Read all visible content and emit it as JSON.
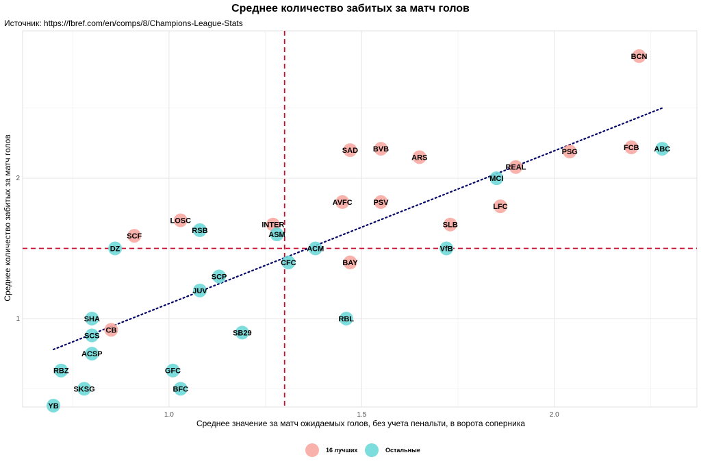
{
  "chart_data": {
    "type": "scatter",
    "title": "Среднее количество забитых за матч голов",
    "caption": "Источник: https://fbref.com/en/comps/8/Champions-League-Stats",
    "xlabel": "Среднее значение за матч ожидаемых голов, без учета пенальти, в ворота соперника",
    "ylabel": "Среднее количество забитых за матч голов",
    "xlim": [
      0.62,
      2.37
    ],
    "ylim": [
      0.37,
      3.05
    ],
    "x_ticks": [
      {
        "value": 1.0,
        "label": "1.0"
      },
      {
        "value": 1.5,
        "label": "1.5"
      },
      {
        "value": 2.0,
        "label": "2.0"
      }
    ],
    "y_ticks": [
      {
        "value": 1,
        "label": "1"
      },
      {
        "value": 2,
        "label": "2"
      }
    ],
    "grid": true,
    "vline_x": 1.3,
    "hline_y": 1.5,
    "trend_line": {
      "x": [
        0.7,
        2.28
      ],
      "y": [
        0.78,
        2.5
      ]
    },
    "legend": [
      {
        "name": "16 лучших",
        "color": "#F8A8A2"
      },
      {
        "name": "Остальные",
        "color": "#6FD8D8"
      }
    ],
    "legend_position": "bottom",
    "points": [
      {
        "label": "BCN",
        "x": 2.22,
        "y": 2.87,
        "group": 0
      },
      {
        "label": "FCB",
        "x": 2.2,
        "y": 2.22,
        "group": 0
      },
      {
        "label": "ABC",
        "x": 2.28,
        "y": 2.21,
        "group": 1
      },
      {
        "label": "PSG",
        "x": 2.04,
        "y": 2.19,
        "group": 0
      },
      {
        "label": "REAL",
        "x": 1.9,
        "y": 2.08,
        "group": 0
      },
      {
        "label": "MCI",
        "x": 1.85,
        "y": 2.0,
        "group": 1
      },
      {
        "label": "LFC",
        "x": 1.86,
        "y": 1.8,
        "group": 0
      },
      {
        "label": "SLB",
        "x": 1.73,
        "y": 1.67,
        "group": 0
      },
      {
        "label": "VfB",
        "x": 1.72,
        "y": 1.5,
        "group": 1
      },
      {
        "label": "ARS",
        "x": 1.65,
        "y": 2.15,
        "group": 0
      },
      {
        "label": "BVB",
        "x": 1.55,
        "y": 2.21,
        "group": 0
      },
      {
        "label": "SAD",
        "x": 1.47,
        "y": 2.2,
        "group": 0
      },
      {
        "label": "PSV",
        "x": 1.55,
        "y": 1.83,
        "group": 0
      },
      {
        "label": "AVFC",
        "x": 1.45,
        "y": 1.83,
        "group": 0
      },
      {
        "label": "BAY",
        "x": 1.47,
        "y": 1.4,
        "group": 0
      },
      {
        "label": "RBL",
        "x": 1.46,
        "y": 1.0,
        "group": 1
      },
      {
        "label": "ACM",
        "x": 1.38,
        "y": 1.5,
        "group": 1
      },
      {
        "label": "CFC",
        "x": 1.31,
        "y": 1.4,
        "group": 1
      },
      {
        "label": "INTER",
        "x": 1.27,
        "y": 1.67,
        "group": 0
      },
      {
        "label": "ASM",
        "x": 1.28,
        "y": 1.6,
        "group": 1
      },
      {
        "label": "SB29",
        "x": 1.19,
        "y": 0.9,
        "group": 1
      },
      {
        "label": "SCP",
        "x": 1.13,
        "y": 1.3,
        "group": 1
      },
      {
        "label": "JUV",
        "x": 1.08,
        "y": 1.2,
        "group": 1
      },
      {
        "label": "LOSC",
        "x": 1.03,
        "y": 1.7,
        "group": 0
      },
      {
        "label": "RSB",
        "x": 1.08,
        "y": 1.63,
        "group": 1
      },
      {
        "label": "GFC",
        "x": 1.01,
        "y": 0.63,
        "group": 1
      },
      {
        "label": "BFC",
        "x": 1.03,
        "y": 0.5,
        "group": 1
      },
      {
        "label": "SCF",
        "x": 0.91,
        "y": 1.59,
        "group": 0
      },
      {
        "label": "DZ",
        "x": 0.86,
        "y": 1.5,
        "group": 1
      },
      {
        "label": "CB",
        "x": 0.85,
        "y": 0.92,
        "group": 0
      },
      {
        "label": "SHA",
        "x": 0.8,
        "y": 1.0,
        "group": 1
      },
      {
        "label": "SCS",
        "x": 0.8,
        "y": 0.88,
        "group": 1
      },
      {
        "label": "ACSP",
        "x": 0.8,
        "y": 0.75,
        "group": 1
      },
      {
        "label": "RBZ",
        "x": 0.72,
        "y": 0.63,
        "group": 1
      },
      {
        "label": "SKSG",
        "x": 0.78,
        "y": 0.5,
        "group": 1
      },
      {
        "label": "YB",
        "x": 0.7,
        "y": 0.38,
        "group": 1
      }
    ]
  }
}
